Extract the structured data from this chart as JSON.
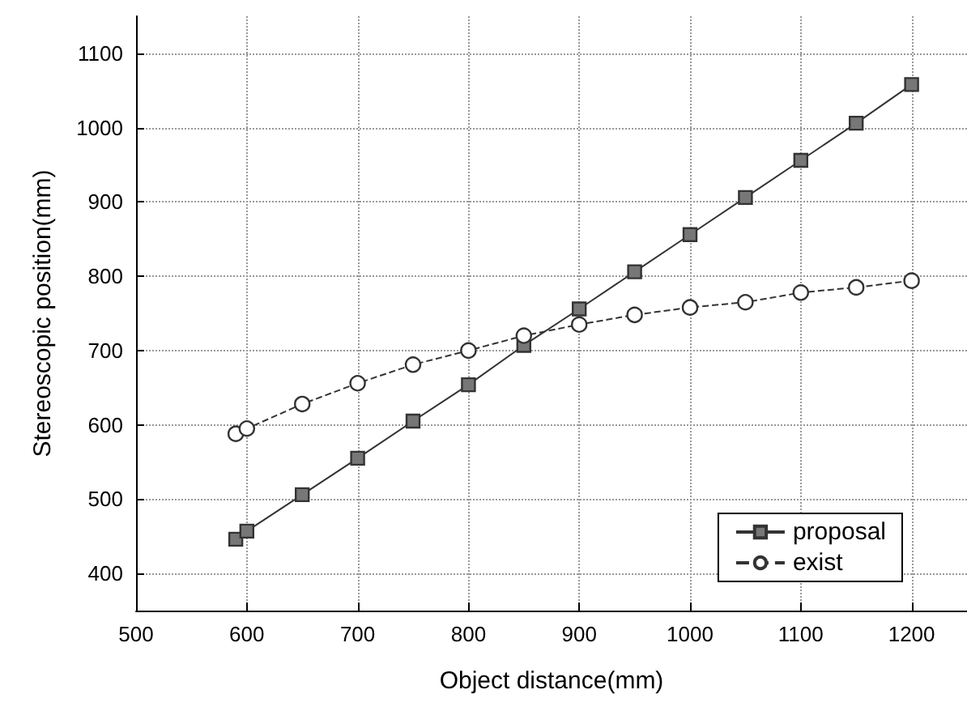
{
  "chart_data": {
    "type": "line",
    "xlabel": "Object distance(mm)",
    "ylabel": "Stereoscopic position(mm)",
    "xlim": [
      500,
      1250
    ],
    "xticks": [
      500,
      600,
      700,
      800,
      900,
      1000,
      1100,
      1200
    ],
    "ylim": [
      350,
      1150
    ],
    "yticks": [
      400,
      500,
      600,
      700,
      800,
      900,
      1000,
      1100
    ],
    "grid": true,
    "legend": "bottom right",
    "x": [
      590,
      600,
      650,
      700,
      750,
      800,
      850,
      900,
      950,
      1000,
      1050,
      1100,
      1150,
      1200
    ],
    "series": [
      {
        "name": "proposal",
        "color": "#333333",
        "marker": "square",
        "line_style": "solid",
        "values": [
          446,
          457,
          506,
          555,
          605,
          654,
          707,
          756,
          806,
          856,
          906,
          956,
          1006,
          1058
        ]
      },
      {
        "name": "exist",
        "color": "#333333",
        "marker": "circle",
        "line_style": "dashed",
        "values": [
          588,
          595,
          628,
          656,
          681,
          700,
          720,
          735,
          748,
          758,
          765,
          778,
          785,
          794
        ]
      }
    ]
  }
}
